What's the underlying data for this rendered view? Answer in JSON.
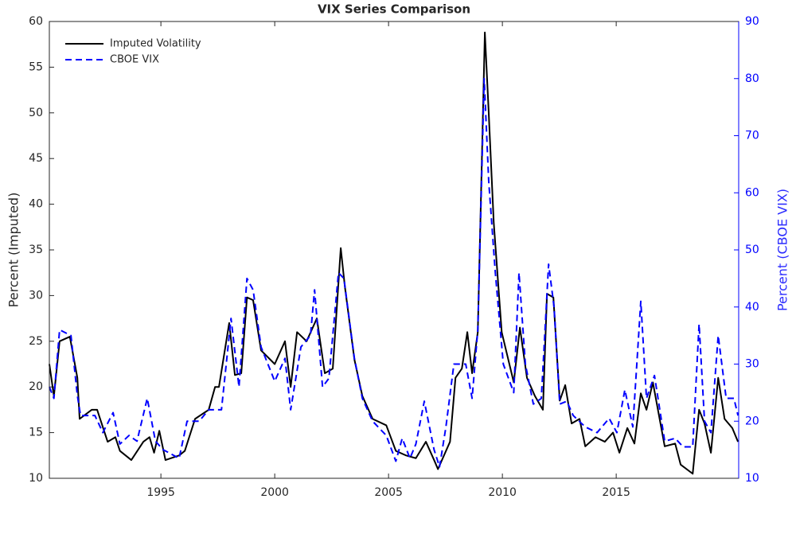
{
  "chart_data": {
    "type": "line",
    "title": "VIX Series Comparison",
    "ylabel": "Percent (Imputed)",
    "y2label": "Percent (CBOE VIX)",
    "xlim": [
      1990.1,
      2020.38
    ],
    "xticks": [
      1995,
      2000,
      2005,
      2010,
      2015
    ],
    "ylim": [
      10,
      60
    ],
    "yticks": [
      10,
      15,
      20,
      25,
      30,
      35,
      40,
      45,
      50,
      55,
      60
    ],
    "y2lim": [
      10,
      90
    ],
    "y2ticks": [
      10,
      20,
      30,
      40,
      50,
      60,
      70,
      80,
      90
    ],
    "grid": false,
    "legend": "upper left",
    "series": [
      {
        "name": "Imputed Volatility",
        "color": "#000000",
        "axis": "y",
        "x": [
          1990.1,
          1990.3,
          1990.55,
          1991.0,
          1991.33,
          1991.43,
          1991.96,
          1992.2,
          1992.66,
          1993.0,
          1993.2,
          1993.7,
          1994.23,
          1994.5,
          1994.7,
          1994.93,
          1995.2,
          1995.8,
          1996.05,
          1996.5,
          1997.1,
          1997.38,
          1997.55,
          1998.0,
          1998.25,
          1998.53,
          1998.78,
          1999.05,
          1999.4,
          2000.0,
          2000.45,
          2000.7,
          2000.98,
          2001.4,
          2001.85,
          2002.2,
          2002.55,
          2002.9,
          2003.08,
          2003.5,
          2003.85,
          2004.3,
          2004.9,
          2005.32,
          2005.77,
          2006.2,
          2006.64,
          2007.0,
          2007.17,
          2007.7,
          2007.94,
          2008.22,
          2008.46,
          2008.67,
          2008.92,
          2009.23,
          2009.4,
          2009.62,
          2009.97,
          2010.5,
          2010.77,
          2011.08,
          2011.43,
          2011.78,
          2011.96,
          2012.24,
          2012.52,
          2012.76,
          2013.04,
          2013.39,
          2013.64,
          2014.09,
          2014.5,
          2014.86,
          2015.14,
          2015.49,
          2015.8,
          2016.08,
          2016.33,
          2016.61,
          2017.13,
          2017.59,
          2017.83,
          2018.36,
          2018.64,
          2018.88,
          2019.16,
          2019.48,
          2019.76,
          2020.1,
          2020.35
        ],
        "values": [
          22.5,
          19,
          25,
          25.5,
          21,
          16.5,
          17.5,
          17.5,
          14,
          14.5,
          13,
          12,
          14,
          14.5,
          12.8,
          15.2,
          12,
          12.5,
          13,
          16.5,
          17.5,
          20,
          20,
          27,
          21.3,
          21.5,
          29.8,
          29.5,
          24,
          22.5,
          25,
          20,
          26,
          25,
          27.5,
          21.5,
          22,
          35.2,
          31,
          23,
          19,
          16.5,
          15.8,
          13,
          12.5,
          12.2,
          14,
          12,
          11,
          14,
          21,
          22,
          26,
          21.5,
          26,
          58.8,
          50,
          38,
          26,
          20.5,
          26.5,
          21,
          19,
          17.5,
          30.2,
          29.8,
          18.5,
          20.2,
          16,
          16.5,
          13.5,
          14.5,
          14,
          15,
          12.8,
          15.5,
          13.8,
          19.3,
          17.5,
          20.5,
          13.5,
          13.8,
          11.5,
          10.5,
          17.5,
          16,
          12.8,
          21,
          16.5,
          15.5,
          14
        ]
      },
      {
        "name": "CBOE VIX",
        "color": "#0000ff",
        "axis": "y2",
        "x": [
          1990.1,
          1990.3,
          1990.55,
          1991.05,
          1991.33,
          1991.47,
          1992.1,
          1992.45,
          1992.9,
          1993.2,
          1993.6,
          1993.95,
          1994.4,
          1994.76,
          1995.1,
          1995.8,
          1996.15,
          1996.68,
          1997.1,
          1997.66,
          1998.08,
          1998.43,
          1998.78,
          1999.05,
          1999.4,
          2000.0,
          2000.45,
          2000.7,
          2001.15,
          2001.57,
          2001.75,
          2002.1,
          2002.38,
          2002.8,
          2003.04,
          2003.5,
          2003.85,
          2004.3,
          2004.9,
          2005.32,
          2005.6,
          2005.94,
          2006.2,
          2006.57,
          2007.0,
          2007.24,
          2007.52,
          2007.87,
          2008.22,
          2008.39,
          2008.67,
          2008.92,
          2009.2,
          2009.4,
          2009.69,
          2010.04,
          2010.5,
          2010.73,
          2011.01,
          2011.36,
          2011.71,
          2012.03,
          2012.27,
          2012.52,
          2012.83,
          2013.11,
          2013.64,
          2014.16,
          2014.69,
          2015.03,
          2015.38,
          2015.73,
          2016.08,
          2016.33,
          2016.68,
          2017.13,
          2017.59,
          2017.94,
          2018.36,
          2018.64,
          2018.88,
          2019.16,
          2019.48,
          2019.83,
          2020.17,
          2020.35
        ],
        "values": [
          26,
          24,
          36,
          35,
          24.5,
          21,
          21,
          18,
          21.5,
          16,
          17.5,
          16.5,
          24,
          16.5,
          15,
          13.5,
          20,
          20,
          22,
          22,
          38,
          26,
          45,
          43,
          33,
          27,
          31,
          22,
          33,
          35,
          43,
          26,
          27.5,
          46,
          45,
          31,
          24,
          20,
          17.5,
          13,
          17,
          13.5,
          16,
          23.5,
          15,
          12,
          19,
          30,
          30,
          30,
          24,
          36,
          80,
          62,
          46,
          30,
          25,
          46,
          30,
          23,
          24,
          47.5,
          40,
          23,
          23.5,
          21,
          19,
          18,
          20.5,
          18,
          25.5,
          19,
          41,
          24,
          28,
          16.5,
          17,
          15.5,
          15.5,
          37,
          20,
          18,
          35,
          24,
          24,
          21
        ]
      }
    ]
  }
}
